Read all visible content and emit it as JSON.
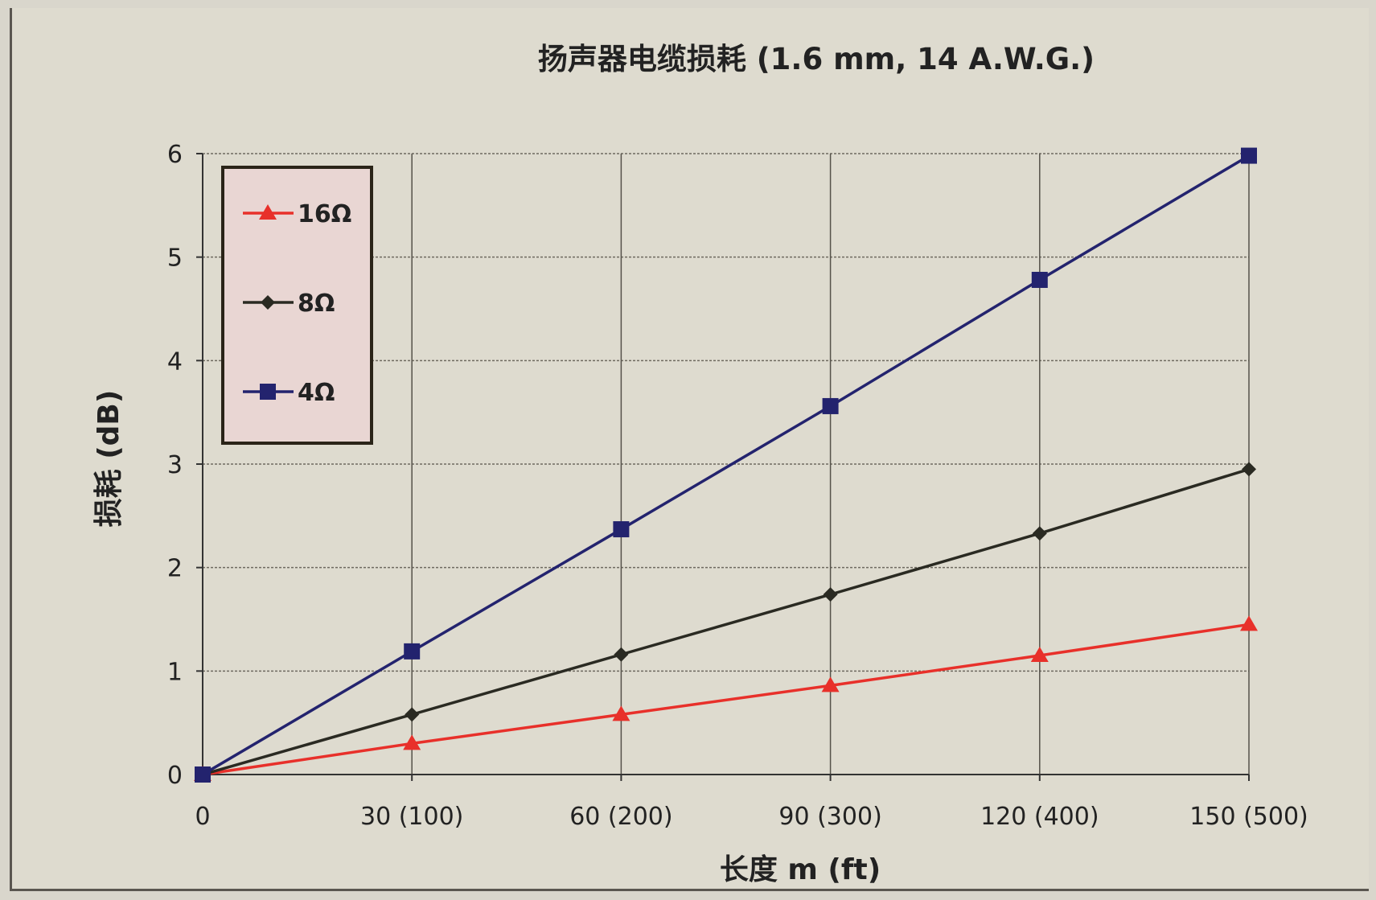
{
  "chart_data": {
    "type": "line",
    "title": "扬声器电缆损耗 (1.6 mm, 14 A.W.G.)",
    "xlabel": "长度 m (ft)",
    "ylabel": "损耗 (dB)",
    "categories": [
      "0",
      "30 (100)",
      "60 (200)",
      "90 (300)",
      "120 (400)",
      "150 (500)"
    ],
    "x": [
      0,
      30,
      60,
      90,
      120,
      150
    ],
    "xlim": [
      0,
      150
    ],
    "ylim": [
      0,
      6
    ],
    "yticks": [
      "0",
      "1",
      "2",
      "3",
      "4",
      "5",
      "6"
    ],
    "grid": true,
    "legend_position": "top-left",
    "series": [
      {
        "name": "16Ω",
        "color": "#e8302a",
        "marker": "triangle",
        "values": [
          0,
          0.3,
          0.58,
          0.86,
          1.15,
          1.45
        ]
      },
      {
        "name": "8Ω",
        "color": "#2a2a22",
        "marker": "diamond",
        "values": [
          0,
          0.58,
          1.16,
          1.74,
          2.33,
          2.95
        ]
      },
      {
        "name": "4Ω",
        "color": "#23236e",
        "marker": "square",
        "values": [
          0,
          1.19,
          2.37,
          3.56,
          4.78,
          5.98
        ]
      }
    ]
  }
}
